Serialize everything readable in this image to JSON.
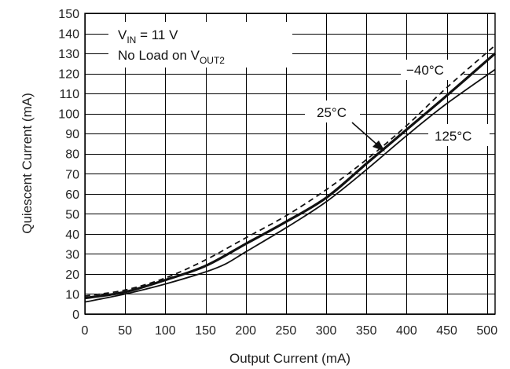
{
  "chart_data": {
    "type": "line",
    "title": "",
    "xlabel": "Output Current (mA)",
    "ylabel": "Quiescent Current (mA)",
    "xlim": [
      0,
      510
    ],
    "ylim": [
      0,
      150
    ],
    "x_ticks": [
      0,
      50,
      100,
      150,
      200,
      250,
      300,
      350,
      400,
      450,
      500
    ],
    "y_ticks": [
      0,
      10,
      20,
      30,
      40,
      50,
      60,
      70,
      80,
      90,
      100,
      110,
      120,
      130,
      140,
      150
    ],
    "grid": true,
    "series": [
      {
        "name": "−40°C",
        "style": "dashed",
        "color": "#111111",
        "x": [
          0,
          50,
          100,
          150,
          200,
          250,
          300,
          350,
          400,
          450,
          510
        ],
        "y": [
          9,
          12,
          18,
          27,
          38,
          49,
          62,
          77,
          94,
          113,
          134
        ]
      },
      {
        "name": "25°C",
        "style": "solid-bold",
        "color": "#111111",
        "x": [
          0,
          50,
          100,
          150,
          200,
          250,
          300,
          350,
          400,
          450,
          510
        ],
        "y": [
          8,
          11,
          17,
          24,
          35,
          46,
          58,
          75,
          92,
          109,
          130
        ]
      },
      {
        "name": "125°C",
        "style": "solid",
        "color": "#111111",
        "x": [
          0,
          50,
          100,
          150,
          175,
          200,
          250,
          300,
          350,
          400,
          450,
          510
        ],
        "y": [
          6,
          10,
          15,
          21,
          25,
          31,
          43,
          56,
          72,
          89,
          105,
          122
        ]
      }
    ],
    "annotations": {
      "vin_main": "V",
      "vin_sub": "IN",
      "vin_rest": " = 11 V",
      "load_main": "No Load on V",
      "load_sub": "OUT2"
    }
  }
}
